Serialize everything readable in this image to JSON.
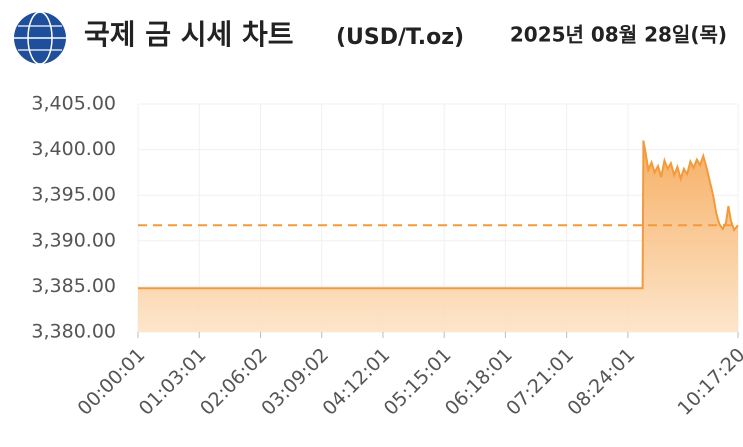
{
  "chart_data": {
    "type": "area",
    "title": "국제 금 시세 차트",
    "unit": "(USD/T.oz)",
    "date": "2025년 08월 28일(목)",
    "color": "#f29a3c",
    "reference_line": 3391.7,
    "grid": true,
    "x": [
      1,
      31150,
      31200,
      31350,
      31500,
      31700,
      31900,
      32100,
      32300,
      32500,
      32700,
      32900,
      33100,
      33300,
      33500,
      33700,
      33900,
      34100,
      34300,
      34500,
      34700,
      34900,
      35100,
      35300,
      35500,
      35700,
      35900,
      36100,
      36300,
      36450,
      36600,
      36800,
      37040
    ],
    "values": [
      3384.8,
      3384.8,
      3401.0,
      3399.5,
      3397.8,
      3398.6,
      3397.5,
      3398.2,
      3397.0,
      3398.8,
      3397.9,
      3398.5,
      3397.2,
      3398.1,
      3396.8,
      3397.9,
      3397.3,
      3398.7,
      3398.0,
      3398.9,
      3398.3,
      3399.3,
      3398.0,
      3396.5,
      3395.0,
      3393.0,
      3391.8,
      3391.3,
      3392.0,
      3393.8,
      3392.2,
      3391.2,
      3391.7
    ],
    "xlim": [
      1,
      37040
    ],
    "xticks": [
      {
        "value": 1,
        "label": "00:00:01"
      },
      {
        "value": 3781,
        "label": "01:03:01"
      },
      {
        "value": 7562,
        "label": "02:06:02"
      },
      {
        "value": 11342,
        "label": "03:09:02"
      },
      {
        "value": 15121,
        "label": "04:12:01"
      },
      {
        "value": 18901,
        "label": "05:15:01"
      },
      {
        "value": 22681,
        "label": "06:18:01"
      },
      {
        "value": 26461,
        "label": "07:21:01"
      },
      {
        "value": 30241,
        "label": "08:24:01"
      },
      {
        "value": 37040,
        "label": "10:17:20"
      }
    ],
    "ylim": [
      3380,
      3405
    ],
    "yticks": [
      {
        "value": 3380,
        "label": "3,380.00"
      },
      {
        "value": 3385,
        "label": "3,385.00"
      },
      {
        "value": 3390,
        "label": "3,390.00"
      },
      {
        "value": 3395,
        "label": "3,395.00"
      },
      {
        "value": 3400,
        "label": "3,400.00"
      },
      {
        "value": 3405,
        "label": "3,405.00"
      }
    ]
  }
}
